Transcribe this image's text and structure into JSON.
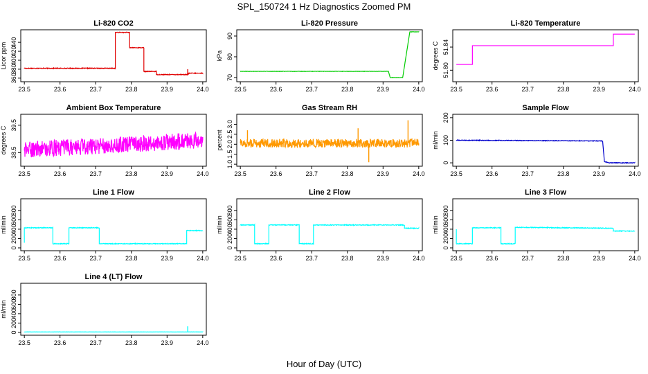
{
  "figure": {
    "title": "SPL_150724  1 Hz Diagnostics Zoomed PM",
    "xlabel": "Hour of Day (UTC)"
  },
  "chart_data": [
    {
      "type": "line",
      "title": "Li-820 CO2",
      "ylabel": "Licor ppm",
      "color": "#e00000",
      "xlim": [
        23.49,
        24.01
      ],
      "ylim": [
        352,
        468
      ],
      "x_ticks": [
        23.5,
        23.6,
        23.7,
        23.8,
        23.9,
        24.0
      ],
      "x_tick_labels": [
        "23.5",
        "23.6",
        "23.7",
        "23.8",
        "23.9",
        "24.0"
      ],
      "y_ticks": [
        360,
        380,
        400,
        420,
        440
      ],
      "y_tick_labels": [
        "360",
        "380",
        "400",
        "420",
        "440"
      ],
      "noise": 0.8,
      "segments": [
        [
          23.5,
          382
        ],
        [
          23.755,
          382
        ],
        [
          23.755,
          462
        ],
        [
          23.795,
          462
        ],
        [
          23.795,
          428
        ],
        [
          23.835,
          428
        ],
        [
          23.835,
          375
        ],
        [
          23.87,
          375
        ],
        [
          23.87,
          368
        ],
        [
          23.96,
          368
        ],
        [
          23.96,
          371
        ],
        [
          24.0,
          371
        ]
      ],
      "spikes": [
        {
          "x": 23.958,
          "y": 380
        }
      ]
    },
    {
      "type": "line",
      "title": "Li-820 Pressure",
      "ylabel": "kPa",
      "color": "#00cc00",
      "xlim": [
        23.49,
        24.01
      ],
      "ylim": [
        68,
        93
      ],
      "x_ticks": [
        23.5,
        23.6,
        23.7,
        23.8,
        23.9,
        24.0
      ],
      "x_tick_labels": [
        "23.5",
        "23.6",
        "23.7",
        "23.8",
        "23.9",
        "24.0"
      ],
      "y_ticks": [
        70,
        80,
        90
      ],
      "y_tick_labels": [
        "70",
        "80",
        "90"
      ],
      "noise": 0.08,
      "segments": [
        [
          23.5,
          73
        ],
        [
          23.915,
          73
        ],
        [
          23.92,
          70
        ],
        [
          23.955,
          70
        ],
        [
          23.975,
          92
        ],
        [
          24.0,
          92
        ]
      ],
      "spikes": []
    },
    {
      "type": "line",
      "title": "Li-820 Temperature",
      "ylabel": "degrees C",
      "color": "#ff00ff",
      "xlim": [
        23.49,
        24.01
      ],
      "ylim": [
        51.78,
        51.87
      ],
      "x_ticks": [
        23.5,
        23.6,
        23.7,
        23.8,
        23.9,
        24.0
      ],
      "x_tick_labels": [
        "23.5",
        "23.6",
        "23.7",
        "23.8",
        "23.9",
        "24.0"
      ],
      "y_ticks": [
        51.8,
        51.84
      ],
      "y_tick_labels": [
        "51.80",
        "51.84"
      ],
      "noise": 0,
      "segments": [
        [
          23.5,
          51.81
        ],
        [
          23.545,
          51.81
        ],
        [
          23.545,
          51.8425
        ],
        [
          23.94,
          51.8425
        ],
        [
          23.94,
          51.8625
        ],
        [
          24.0,
          51.8625
        ]
      ],
      "spikes": []
    },
    {
      "type": "line",
      "title": "Ambient Box Temperature",
      "ylabel": "degrees C",
      "color": "#ff00ff",
      "xlim": [
        23.49,
        24.01
      ],
      "ylim": [
        38.0,
        39.9
      ],
      "x_ticks": [
        23.5,
        23.6,
        23.7,
        23.8,
        23.9,
        24.0
      ],
      "x_tick_labels": [
        "23.5",
        "23.6",
        "23.7",
        "23.8",
        "23.9",
        "24.0"
      ],
      "y_ticks": [
        38.5,
        39.5
      ],
      "y_tick_labels": [
        "38.5",
        "39.5"
      ],
      "noise": 0.3,
      "segments": [
        [
          23.5,
          38.6
        ],
        [
          24.0,
          38.95
        ]
      ],
      "spikes": []
    },
    {
      "type": "line",
      "title": "Gas Stream RH",
      "ylabel": "percent",
      "color": "#ff9900",
      "xlim": [
        23.49,
        24.01
      ],
      "ylim": [
        0.9,
        3.5
      ],
      "x_ticks": [
        23.5,
        23.6,
        23.7,
        23.8,
        23.9,
        24.0
      ],
      "x_tick_labels": [
        "23.5",
        "23.6",
        "23.7",
        "23.8",
        "23.9",
        "24.0"
      ],
      "y_ticks": [
        1.0,
        1.5,
        2.0,
        2.5,
        3.0
      ],
      "y_tick_labels": [
        "1.0",
        "1.5",
        "2.0",
        "2.5",
        "3.0"
      ],
      "noise": 0.22,
      "segments": [
        [
          23.5,
          2.05
        ],
        [
          24.0,
          2.05
        ]
      ],
      "spikes": [
        {
          "x": 23.52,
          "y": 2.7
        },
        {
          "x": 23.83,
          "y": 2.8
        },
        {
          "x": 23.86,
          "y": 1.1
        },
        {
          "x": 23.97,
          "y": 3.2
        }
      ]
    },
    {
      "type": "line",
      "title": "Sample Flow",
      "ylabel": "ml/min",
      "color": "#0000cc",
      "xlim": [
        23.49,
        24.01
      ],
      "ylim": [
        -15,
        215
      ],
      "x_ticks": [
        23.5,
        23.6,
        23.7,
        23.8,
        23.9,
        24.0
      ],
      "x_tick_labels": [
        "23.5",
        "23.6",
        "23.7",
        "23.8",
        "23.9",
        "24.0"
      ],
      "y_ticks": [
        0,
        100,
        200
      ],
      "y_tick_labels": [
        "0",
        "100",
        "200"
      ],
      "noise": 1.5,
      "segments": [
        [
          23.5,
          100
        ],
        [
          23.91,
          97
        ],
        [
          23.915,
          5
        ],
        [
          23.93,
          0
        ],
        [
          24.0,
          0
        ]
      ],
      "spikes": []
    },
    {
      "type": "line",
      "title": "Line 1 Flow",
      "ylabel": "ml/min",
      "color": "#00ffff",
      "xlim": [
        23.49,
        24.01
      ],
      "ylim": [
        -60,
        1050
      ],
      "x_ticks": [
        23.5,
        23.6,
        23.7,
        23.8,
        23.9,
        24.0
      ],
      "x_tick_labels": [
        "23.5",
        "23.6",
        "23.7",
        "23.8",
        "23.9",
        "24.0"
      ],
      "y_ticks": [
        0,
        200,
        400,
        600,
        800
      ],
      "y_tick_labels": [
        "0",
        "200",
        "400",
        "600",
        "800"
      ],
      "noise": 8,
      "segments": [
        [
          23.5,
          110
        ],
        [
          23.5,
          430
        ],
        [
          23.58,
          430
        ],
        [
          23.58,
          90
        ],
        [
          23.625,
          90
        ],
        [
          23.625,
          430
        ],
        [
          23.71,
          430
        ],
        [
          23.71,
          90
        ],
        [
          23.955,
          90
        ],
        [
          23.955,
          370
        ],
        [
          24.0,
          370
        ]
      ],
      "spikes": []
    },
    {
      "type": "line",
      "title": "Line 2 Flow",
      "ylabel": "ml/min",
      "color": "#00ffff",
      "xlim": [
        23.49,
        24.01
      ],
      "ylim": [
        -60,
        1050
      ],
      "x_ticks": [
        23.5,
        23.6,
        23.7,
        23.8,
        23.9,
        24.0
      ],
      "x_tick_labels": [
        "23.5",
        "23.6",
        "23.7",
        "23.8",
        "23.9",
        "24.0"
      ],
      "y_ticks": [
        0,
        200,
        400,
        600,
        800
      ],
      "y_tick_labels": [
        "0",
        "200",
        "400",
        "600",
        "800"
      ],
      "noise": 8,
      "segments": [
        [
          23.5,
          490
        ],
        [
          23.54,
          490
        ],
        [
          23.54,
          90
        ],
        [
          23.58,
          90
        ],
        [
          23.58,
          490
        ],
        [
          23.665,
          490
        ],
        [
          23.665,
          90
        ],
        [
          23.705,
          90
        ],
        [
          23.705,
          490
        ],
        [
          23.96,
          490
        ],
        [
          23.96,
          420
        ],
        [
          24.0,
          420
        ]
      ],
      "spikes": []
    },
    {
      "type": "line",
      "title": "Line 3 Flow",
      "ylabel": "ml/min",
      "color": "#00ffff",
      "xlim": [
        23.49,
        24.01
      ],
      "ylim": [
        -60,
        1050
      ],
      "x_ticks": [
        23.5,
        23.6,
        23.7,
        23.8,
        23.9,
        24.0
      ],
      "x_tick_labels": [
        "23.5",
        "23.6",
        "23.7",
        "23.8",
        "23.9",
        "24.0"
      ],
      "y_ticks": [
        0,
        200,
        400,
        600,
        800
      ],
      "y_tick_labels": [
        "0",
        "200",
        "400",
        "600",
        "800"
      ],
      "noise": 8,
      "segments": [
        [
          23.5,
          400
        ],
        [
          23.5,
          90
        ],
        [
          23.545,
          90
        ],
        [
          23.545,
          430
        ],
        [
          23.625,
          430
        ],
        [
          23.625,
          90
        ],
        [
          23.665,
          90
        ],
        [
          23.665,
          440
        ],
        [
          23.94,
          420
        ],
        [
          23.94,
          360
        ],
        [
          24.0,
          360
        ]
      ],
      "spikes": []
    },
    {
      "type": "line",
      "title": "Line 4 (LT) Flow",
      "ylabel": "ml/min",
      "color": "#00ffff",
      "xlim": [
        23.49,
        24.01
      ],
      "ylim": [
        -60,
        1050
      ],
      "x_ticks": [
        23.5,
        23.6,
        23.7,
        23.8,
        23.9,
        24.0
      ],
      "x_tick_labels": [
        "23.5",
        "23.6",
        "23.7",
        "23.8",
        "23.9",
        "24.0"
      ],
      "y_ticks": [
        0,
        200,
        400,
        600,
        800
      ],
      "y_tick_labels": [
        "0",
        "200",
        "400",
        "600",
        "800"
      ],
      "noise": 2,
      "segments": [
        [
          23.5,
          10
        ],
        [
          24.0,
          10
        ]
      ],
      "spikes": [
        {
          "x": 23.958,
          "y": 130
        }
      ]
    }
  ]
}
